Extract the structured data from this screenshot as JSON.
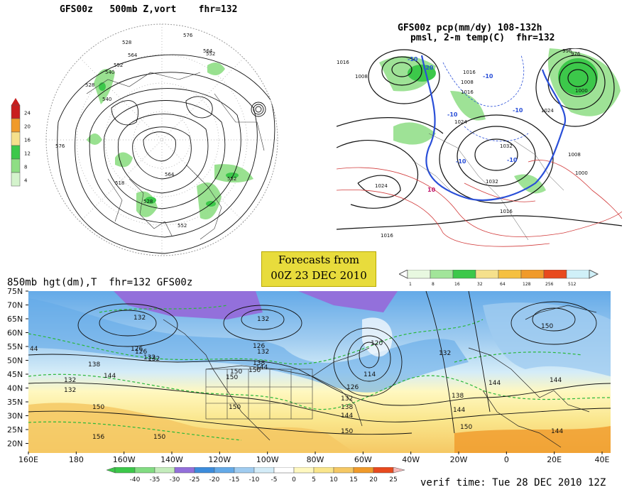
{
  "panel_500mb": {
    "title": "GFS00z   500mb Z,vort    fhr=132",
    "colorbar_ticks": [
      "24",
      "20",
      "16",
      "12",
      "8",
      "4"
    ],
    "colorbar_colors": [
      "#c81e1e",
      "#f09a2a",
      "#f5e08c",
      "#3cc84a",
      "#8ede84",
      "#d4f3cc"
    ],
    "contour_labels": [
      "576",
      "528",
      "564",
      "552",
      "540",
      "528",
      "540",
      "564",
      "552",
      "576",
      "518",
      "528",
      "564",
      "552",
      "576",
      "540",
      "552"
    ]
  },
  "panel_pmsl": {
    "title_line1": "GFS00z pcp(mm/dy) 108-132h",
    "title_line2": "pmsl, 2-m temp(C)  fhr=132",
    "isobar_labels": [
      "1016",
      "1008",
      "1016",
      "1008",
      "1016",
      "1024",
      "1032",
      "1024",
      "1032",
      "1024",
      "1016",
      "976",
      "1000",
      "1008",
      "1016",
      "1000",
      "996"
    ],
    "temp_labels": [
      "-10",
      "-20",
      "-10",
      "-10",
      "-10",
      "10",
      "-10",
      "-10"
    ],
    "colorbar_ticks": [
      "1",
      "8",
      "16",
      "32",
      "64",
      "128",
      "256",
      "512"
    ],
    "colorbar_colors": [
      "#e8f8e0",
      "#a2e59a",
      "#3cc84a",
      "#f5e08c",
      "#f5c040",
      "#f09a2a",
      "#e84a1e",
      "#d0f0f8"
    ]
  },
  "banner": {
    "line1": "Forecasts from",
    "line2": "00Z 23 DEC 2010"
  },
  "panel_850mb": {
    "title": "850mb hgt(dm),T  fhr=132 GFS00z",
    "lat_labels": [
      "75N",
      "70N",
      "65N",
      "60N",
      "55N",
      "50N",
      "45N",
      "40N",
      "35N",
      "30N",
      "25N",
      "20N"
    ],
    "lon_labels": [
      "160E",
      "180",
      "160W",
      "140W",
      "120W",
      "100W",
      "80W",
      "60W",
      "40W",
      "20W",
      "0",
      "20E",
      "40E"
    ],
    "height_labels": [
      "132",
      "132",
      "126",
      "132",
      "138",
      "144",
      "132",
      "150",
      "150",
      "132",
      "126",
      "150",
      "138",
      "144",
      "120",
      "132",
      "114",
      "126",
      "132",
      "138",
      "144",
      "150",
      "150",
      "132",
      "138",
      "144",
      "150",
      "144",
      "150",
      "144",
      "144",
      "150",
      "156",
      "44",
      "126",
      "132",
      "150"
    ],
    "colorbar_ticks": [
      "-40",
      "-35",
      "-30",
      "-25",
      "-20",
      "-15",
      "-10",
      "-5",
      "0",
      "5",
      "10",
      "15",
      "20",
      "25"
    ],
    "colorbar_colors": [
      "#3cc84a",
      "#82dc82",
      "#c4ecbc",
      "#9370db",
      "#3c8cdc",
      "#64aae8",
      "#a0ccf0",
      "#d4ecf8",
      "#ffffff",
      "#fff8c0",
      "#fae68c",
      "#f5c864",
      "#f09a2a",
      "#e84a1e"
    ],
    "verif_time": "verif time: Tue 28 DEC 2010 12Z"
  }
}
